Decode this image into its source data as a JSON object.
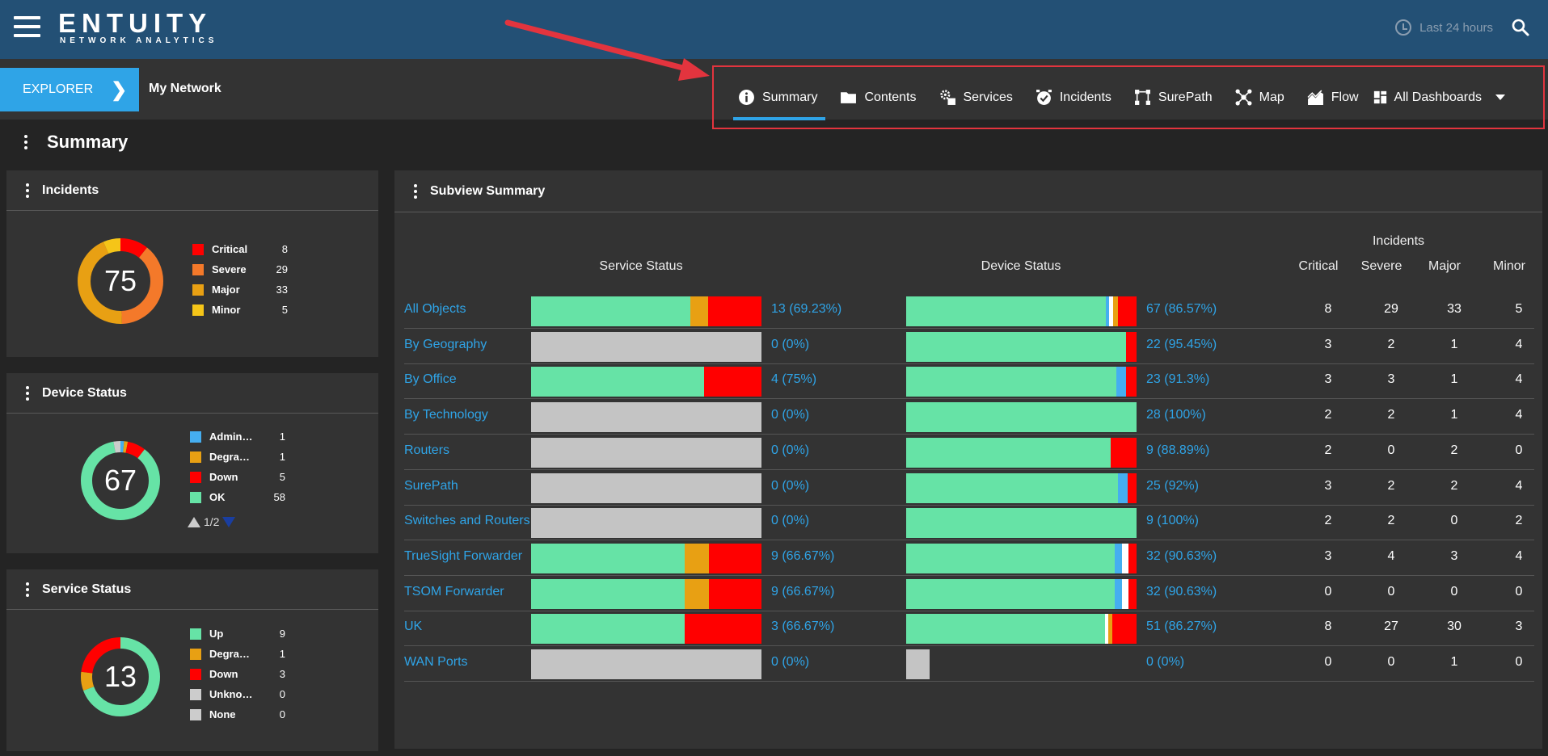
{
  "header": {
    "logo_main": "ENTUITY",
    "logo_sub": "NETWORK ANALYTICS",
    "time_range": "Last 24 hours"
  },
  "subbar": {
    "explorer_label": "EXPLORER",
    "location": "My Network"
  },
  "tabs": [
    {
      "label": "Summary",
      "icon": "info-icon"
    },
    {
      "label": "Contents",
      "icon": "folder-icon"
    },
    {
      "label": "Services",
      "icon": "gears-icon"
    },
    {
      "label": "Incidents",
      "icon": "alarm-icon"
    },
    {
      "label": "SurePath",
      "icon": "path-icon"
    },
    {
      "label": "Map",
      "icon": "network-map-icon"
    },
    {
      "label": "Flow",
      "icon": "flow-chart-icon"
    },
    {
      "label": "All Dashboards",
      "icon": "dashboard-icon"
    }
  ],
  "page": {
    "title": "Summary"
  },
  "incidents_panel": {
    "title": "Incidents",
    "total": "75",
    "items": [
      {
        "label": "Critical",
        "value": 8,
        "color": "#ff0000"
      },
      {
        "label": "Severe",
        "value": 29,
        "color": "#f4792a"
      },
      {
        "label": "Major",
        "value": 33,
        "color": "#e8a013"
      },
      {
        "label": "Minor",
        "value": 5,
        "color": "#f5c518"
      }
    ]
  },
  "device_panel": {
    "title": "Device Status",
    "total": "67",
    "pager": "1/2",
    "items": [
      {
        "label": "Admin…",
        "value": 1,
        "color": "#45aef0"
      },
      {
        "label": "Degra…",
        "value": 1,
        "color": "#e8a013"
      },
      {
        "label": "Down",
        "value": 5,
        "color": "#ff0000"
      },
      {
        "label": "OK",
        "value": 58,
        "color": "#66e3a6"
      }
    ],
    "ring_extra": [
      {
        "value": 2,
        "color": "#cccccc"
      }
    ]
  },
  "service_panel": {
    "title": "Service Status",
    "total": "13",
    "items": [
      {
        "label": "Up",
        "value": 9,
        "color": "#66e3a6"
      },
      {
        "label": "Degra…",
        "value": 1,
        "color": "#e8a013"
      },
      {
        "label": "Down",
        "value": 3,
        "color": "#ff0000"
      },
      {
        "label": "Unkno…",
        "value": 0,
        "color": "#cccccc"
      },
      {
        "label": "None",
        "value": 0,
        "color": "#cccccc"
      }
    ]
  },
  "subview": {
    "title": "Subview Summary",
    "headers": {
      "service": "Service Status",
      "device": "Device Status",
      "incidents": "Incidents",
      "critical": "Critical",
      "severe": "Severe",
      "major": "Major",
      "minor": "Minor"
    },
    "rows": [
      {
        "name": "All Objects",
        "service": [
          [
            0.69,
            "#66e3a6"
          ],
          [
            0.08,
            "#e8a013"
          ],
          [
            0.23,
            "#ff0000"
          ]
        ],
        "service_pct": "13 (69.23%)",
        "device": [
          [
            0.865,
            "#66e3a6"
          ],
          [
            0.015,
            "#45aef0"
          ],
          [
            0.02,
            "#ffffff"
          ],
          [
            0.02,
            "#e8a013"
          ],
          [
            0.08,
            "#ff0000"
          ]
        ],
        "device_pct": "67 (86.57%)",
        "critical": 8,
        "severe": 29,
        "major": 33,
        "minor": 5
      },
      {
        "name": "By Geography",
        "service": [
          [
            1,
            "#c4c4c4"
          ]
        ],
        "service_pct": "0 (0%)",
        "device": [
          [
            0.955,
            "#66e3a6"
          ],
          [
            0.045,
            "#ff0000"
          ]
        ],
        "device_pct": "22 (95.45%)",
        "critical": 3,
        "severe": 2,
        "major": 1,
        "minor": 4
      },
      {
        "name": "By Office",
        "service": [
          [
            0.75,
            "#66e3a6"
          ],
          [
            0.25,
            "#ff0000"
          ]
        ],
        "service_pct": "4 (75%)",
        "device": [
          [
            0.913,
            "#66e3a6"
          ],
          [
            0.043,
            "#45aef0"
          ],
          [
            0.044,
            "#ff0000"
          ]
        ],
        "device_pct": "23 (91.3%)",
        "critical": 3,
        "severe": 3,
        "major": 1,
        "minor": 4
      },
      {
        "name": "By Technology",
        "service": [
          [
            1,
            "#c4c4c4"
          ]
        ],
        "service_pct": "0 (0%)",
        "device": [
          [
            1,
            "#66e3a6"
          ]
        ],
        "device_pct": "28 (100%)",
        "critical": 2,
        "severe": 2,
        "major": 1,
        "minor": 4
      },
      {
        "name": "Routers",
        "service": [
          [
            1,
            "#c4c4c4"
          ]
        ],
        "service_pct": "0 (0%)",
        "device": [
          [
            0.889,
            "#66e3a6"
          ],
          [
            0.111,
            "#ff0000"
          ]
        ],
        "device_pct": "9 (88.89%)",
        "critical": 2,
        "severe": 0,
        "major": 2,
        "minor": 0
      },
      {
        "name": "SurePath",
        "service": [
          [
            1,
            "#c4c4c4"
          ]
        ],
        "service_pct": "0 (0%)",
        "device": [
          [
            0.92,
            "#66e3a6"
          ],
          [
            0.04,
            "#45aef0"
          ],
          [
            0.04,
            "#ff0000"
          ]
        ],
        "device_pct": "25 (92%)",
        "critical": 3,
        "severe": 2,
        "major": 2,
        "minor": 4
      },
      {
        "name": "Switches and Routers",
        "service": [
          [
            1,
            "#c4c4c4"
          ]
        ],
        "service_pct": "0 (0%)",
        "device": [
          [
            1,
            "#66e3a6"
          ]
        ],
        "device_pct": "9 (100%)",
        "critical": 2,
        "severe": 2,
        "major": 0,
        "minor": 2
      },
      {
        "name": "TrueSight Forwarder",
        "service": [
          [
            0.667,
            "#66e3a6"
          ],
          [
            0.106,
            "#e8a013"
          ],
          [
            0.227,
            "#ff0000"
          ]
        ],
        "service_pct": "9 (66.67%)",
        "device": [
          [
            0.906,
            "#66e3a6"
          ],
          [
            0.03,
            "#45aef0"
          ],
          [
            0.03,
            "#ffffff"
          ],
          [
            0.034,
            "#ff0000"
          ]
        ],
        "device_pct": "32 (90.63%)",
        "critical": 3,
        "severe": 4,
        "major": 3,
        "minor": 4
      },
      {
        "name": "TSOM Forwarder",
        "service": [
          [
            0.667,
            "#66e3a6"
          ],
          [
            0.106,
            "#e8a013"
          ],
          [
            0.227,
            "#ff0000"
          ]
        ],
        "service_pct": "9 (66.67%)",
        "device": [
          [
            0.906,
            "#66e3a6"
          ],
          [
            0.03,
            "#45aef0"
          ],
          [
            0.03,
            "#ffffff"
          ],
          [
            0.034,
            "#ff0000"
          ]
        ],
        "device_pct": "32 (90.63%)",
        "critical": 0,
        "severe": 0,
        "major": 0,
        "minor": 0
      },
      {
        "name": "UK",
        "service": [
          [
            0.667,
            "#66e3a6"
          ],
          [
            0.333,
            "#ff0000"
          ]
        ],
        "service_pct": "3 (66.67%)",
        "device": [
          [
            0.863,
            "#66e3a6"
          ],
          [
            0.015,
            "#ffffff"
          ],
          [
            0.017,
            "#e8a013"
          ],
          [
            0.105,
            "#ff0000"
          ]
        ],
        "device_pct": "51 (86.27%)",
        "critical": 8,
        "severe": 27,
        "major": 30,
        "minor": 3
      },
      {
        "name": "WAN Ports",
        "service": [
          [
            1,
            "#c4c4c4"
          ]
        ],
        "service_pct": "0 (0%)",
        "device": [
          [
            0.1,
            "#c4c4c4"
          ]
        ],
        "device_pct": "0 (0%)",
        "critical": 0,
        "severe": 0,
        "major": 1,
        "minor": 0
      }
    ]
  }
}
